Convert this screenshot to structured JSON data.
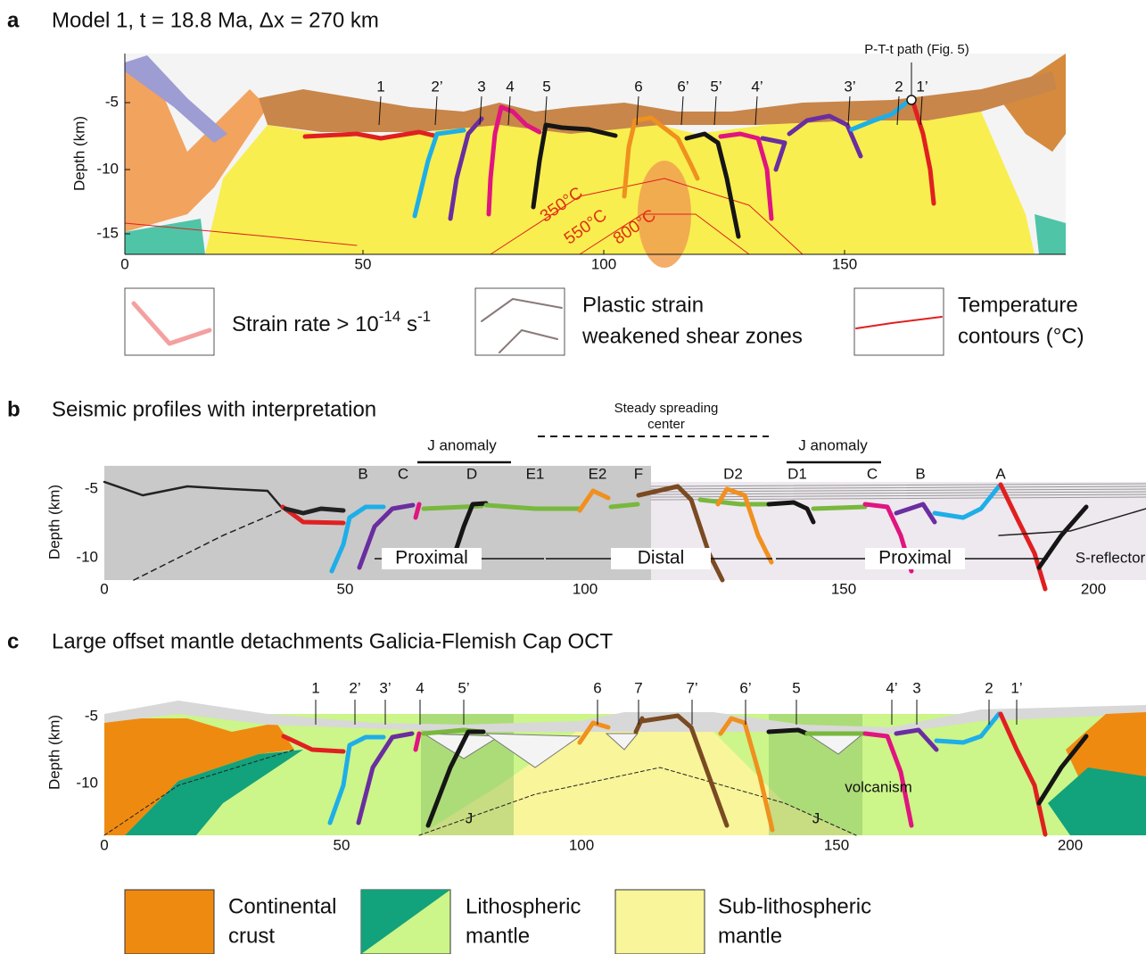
{
  "panels": [
    {
      "label": "a",
      "title": "Model 1, t = 18.8 Ma, Δx = 270 km",
      "annotation": "P-T-t path (Fig. 5)",
      "y_axis_label": "Depth (km)",
      "yticks": [
        -5,
        -10,
        -15
      ],
      "xticks": [
        0,
        50,
        100,
        150
      ],
      "fault_labels": [
        "1",
        "2’",
        "3",
        "4",
        "5",
        "6",
        "6’",
        "5’",
        "4’",
        "3’",
        "2",
        "1’"
      ],
      "temperature_labels": [
        "350°C",
        "550°C",
        "800°C"
      ]
    },
    {
      "label": "b",
      "title": "Seismic profiles with interpretation",
      "annotation": [
        "Steady spreading",
        "center"
      ],
      "anomaly_labels": [
        "J anomaly",
        "J anomaly"
      ],
      "y_axis_label": "Depth (km)",
      "yticks": [
        -5,
        -10
      ],
      "xticks": [
        0,
        50,
        100,
        150,
        200
      ],
      "profile_labels": [
        "B",
        "C",
        "D",
        "E1",
        "E2",
        "F",
        "D2",
        "D1",
        "C",
        "B",
        "A"
      ],
      "domain_labels": [
        "Proximal",
        "Distal",
        "Proximal"
      ],
      "reflector_label": "S-reflector"
    },
    {
      "label": "c",
      "title": "Large offset mantle detachments Galicia-Flemish Cap OCT",
      "y_axis_label": "Depth (km)",
      "yticks": [
        -5,
        -10
      ],
      "xticks": [
        0,
        50,
        100,
        150,
        200
      ],
      "fault_labels": [
        "1",
        "2’",
        "3’",
        "4",
        "5’",
        "6",
        "7",
        "7’",
        "6’",
        "5",
        "4’",
        "3",
        "2",
        "1’"
      ],
      "anomaly_labels": [
        "J",
        "J"
      ],
      "annotation": "volcanism"
    }
  ],
  "legend_a": [
    {
      "parts": [
        "Strain rate > 10",
        "-14",
        " s",
        "-1"
      ]
    },
    {
      "lines": [
        "Plastic strain",
        "weakened shear zones"
      ]
    },
    {
      "lines": [
        "Temperature",
        "contours (°C)"
      ]
    }
  ],
  "legend_c": [
    {
      "lines": [
        "Continental",
        "crust"
      ]
    },
    {
      "lines": [
        "Lithospheric",
        "mantle"
      ]
    },
    {
      "lines": [
        "Sub-lithospheric",
        "mantle"
      ]
    }
  ]
}
